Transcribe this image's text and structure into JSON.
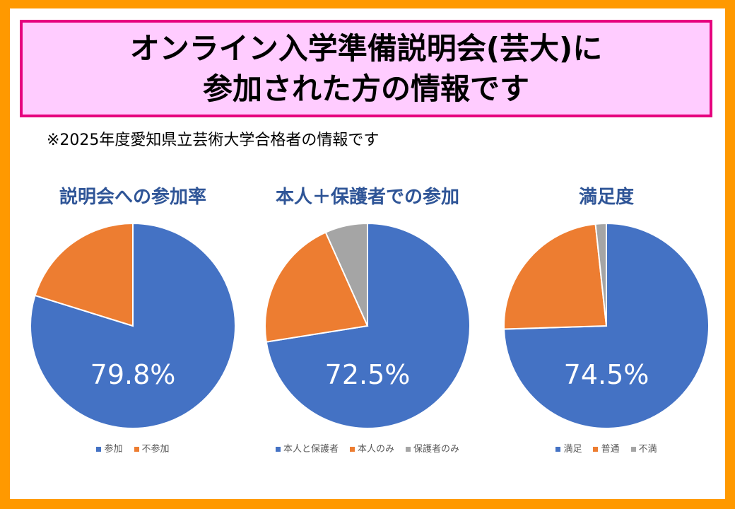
{
  "title_line1": "オンライン入学準備説明会(芸大)に",
  "title_line2": "参加された方の情報です",
  "subtitle": "※2025年度愛知県立芸術大学合格者の情報です",
  "colors": {
    "blue": "#4472C4",
    "orange": "#ED7D31",
    "gray": "#A5A5A5"
  },
  "chart_data": [
    {
      "type": "pie",
      "title": "説明会への参加率",
      "label": "79.8%",
      "categories": [
        "参加",
        "不参加"
      ],
      "values": [
        79.8,
        20.2
      ]
    },
    {
      "type": "pie",
      "title": "本人＋保護者での参加",
      "label": "72.5%",
      "categories": [
        "本人と保護者",
        "本人のみ",
        "保護者のみ"
      ],
      "values": [
        72.5,
        20.8,
        6.7
      ]
    },
    {
      "type": "pie",
      "title": "満足度",
      "label": "74.5%",
      "categories": [
        "満足",
        "普通",
        "不満"
      ],
      "values": [
        74.5,
        23.8,
        1.7
      ]
    }
  ]
}
